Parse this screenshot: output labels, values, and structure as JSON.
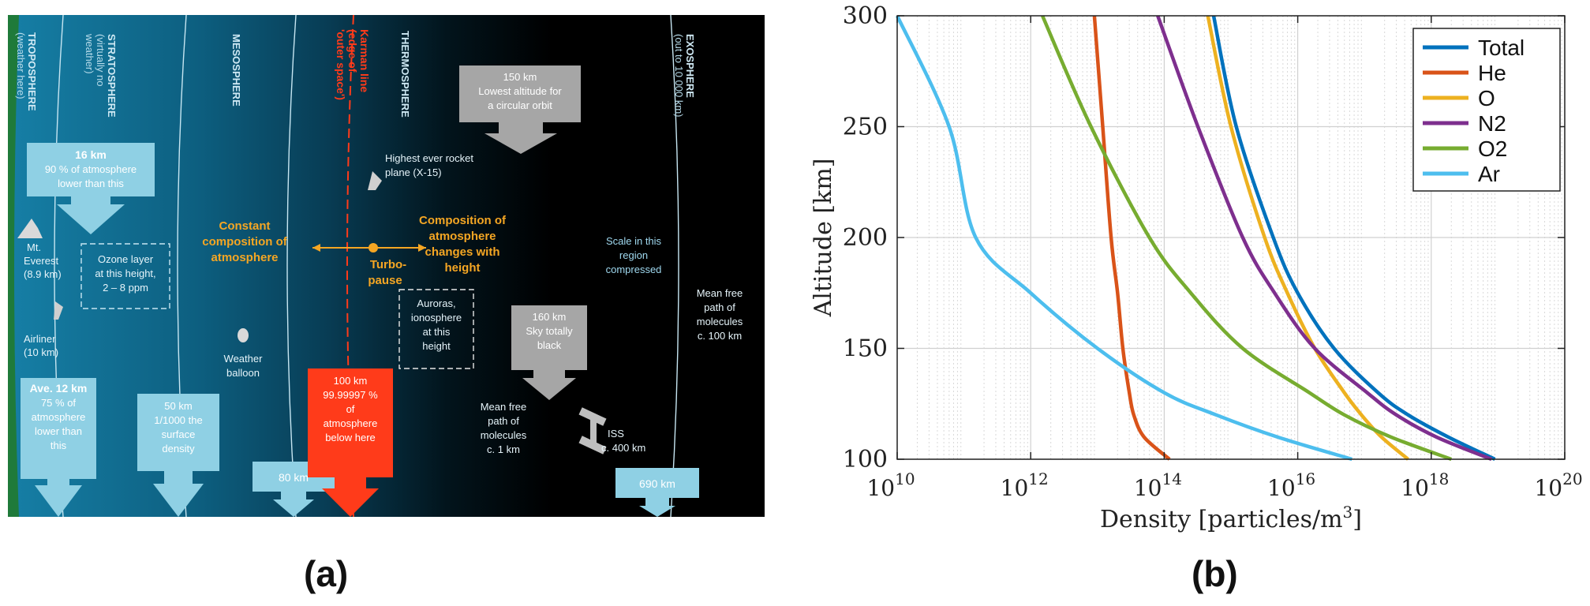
{
  "panel_a": {
    "panel_label": "(a)",
    "layers": {
      "troposphere": {
        "name": "TROPOSPHERE",
        "note": "(weather here)"
      },
      "stratosphere": {
        "name": "STRATOSPHERE",
        "note1": "(virtually no",
        "note2": "weather)"
      },
      "mesosphere": {
        "name": "MESOSPHERE"
      },
      "karman": {
        "l1": "Karman line",
        "l2": "(edge of",
        "l3": "'outer space')"
      },
      "thermosphere": {
        "name": "THERMOSPHERE"
      },
      "exosphere": {
        "name": "EXOSPHERE",
        "note": "(out to 10 000 km)"
      }
    },
    "callouts": {
      "c16km": {
        "l1": "16 km",
        "l2": "90 % of atmosphere",
        "l3": "lower than this"
      },
      "everest": {
        "l1": "Mt.",
        "l2": "Everest",
        "l3": "(8.9 km)"
      },
      "ozone": {
        "l1": "Ozone layer",
        "l2": "at this height,",
        "l3": "2 – 8 ppm"
      },
      "airliner": {
        "l1": "Airliner",
        "l2": "(10 km)"
      },
      "ave12": {
        "l1": "Ave. 12 km",
        "l2": "75 % of",
        "l3": "atmosphere",
        "l4": "lower than",
        "l5": "this"
      },
      "c50km": {
        "l1": "50 km",
        "l2": "1/1000 the",
        "l3": "surface",
        "l4": "density"
      },
      "constant": {
        "l1": "Constant",
        "l2": "composition of",
        "l3": "atmosphere"
      },
      "balloon": {
        "l1": "Weather",
        "l2": "balloon"
      },
      "c80km": {
        "l1": "80 km"
      },
      "c100km": {
        "l1": "100 km",
        "l2": "99.99997 %",
        "l3": "of",
        "l4": "atmosphere",
        "l5": "below here"
      },
      "rocket": {
        "l1": "Highest ever rocket",
        "l2": "plane (X-15)"
      },
      "turbopause": {
        "l1": "Turbo-",
        "l2": "pause"
      },
      "composition": {
        "l1": "Composition of",
        "l2": "atmosphere",
        "l3": "changes with",
        "l4": "height"
      },
      "c150km": {
        "l1": "150 km",
        "l2": "Lowest altitude for",
        "l3": "a circular orbit"
      },
      "auroras": {
        "l1": "Auroras,",
        "l2": "ionosphere",
        "l3": "at this",
        "l4": "height"
      },
      "c160km": {
        "l1": "160 km",
        "l2": "Sky totally",
        "l3": "black"
      },
      "mfp1": {
        "l1": "Mean free",
        "l2": "path of",
        "l3": "molecules",
        "l4": "c. 1 km"
      },
      "iss": {
        "l1": "ISS",
        "l2": "c. 400 km"
      },
      "scale": {
        "l1": "Scale in this",
        "l2": "region",
        "l3": "compressed"
      },
      "mfp100": {
        "l1": "Mean free",
        "l2": "path of",
        "l3": "molecules",
        "l4": "c. 100 km"
      },
      "c690km": {
        "l1": "690 km"
      }
    },
    "colors": {
      "ground": "#1f7a3a",
      "band_light": "#0f6f94",
      "band_dark": "#000000",
      "callout_box": "#8fd0e4",
      "gray_box": "#a6a6a6",
      "red_box": "#ff3b1a",
      "karman": "#ff3b1a",
      "orange_text": "#f5a623"
    }
  },
  "panel_b": {
    "panel_label": "(b)",
    "chart_data": {
      "type": "line",
      "title": "",
      "xlabel": "Density [particles/m",
      "xlabel_sup": "3",
      "xlabel_close": "]",
      "ylabel": "Altitude [km]",
      "xscale": "log",
      "xlim": [
        10000000000.0,
        1e+20
      ],
      "ylim": [
        100,
        300
      ],
      "x_ticks": [
        {
          "base": "10",
          "exp": "10"
        },
        {
          "base": "10",
          "exp": "12"
        },
        {
          "base": "10",
          "exp": "14"
        },
        {
          "base": "10",
          "exp": "16"
        },
        {
          "base": "10",
          "exp": "18"
        },
        {
          "base": "10",
          "exp": "20"
        }
      ],
      "y_ticks": [
        "100",
        "150",
        "200",
        "250",
        "300"
      ],
      "grid": true,
      "legend_position": "top-right",
      "altitudes": [
        100,
        110,
        120,
        130,
        150,
        175,
        200,
        250,
        300
      ],
      "series": [
        {
          "name": "Total",
          "color": "#0072bd",
          "values": [
            9e+18,
            1.8e+18,
            4.5e+17,
            1.6e+17,
            3.5e+16,
            1e+16,
            4300000000000000.0,
            1200000000000000.0,
            550000000000000.0
          ]
        },
        {
          "name": "He",
          "color": "#d95319",
          "values": [
            120000000000000.0,
            50000000000000.0,
            35000000000000.0,
            30000000000000.0,
            24000000000000.0,
            20000000000000.0,
            16000000000000.0,
            12000000000000.0,
            9000000000000.0
          ]
        },
        {
          "name": "O",
          "color": "#edb120",
          "values": [
            4.5e+17,
            1.8e+17,
            9e+16,
            5e+16,
            1.8e+16,
            7000000000000000.0,
            3200000000000000.0,
            1000000000000000.0,
            450000000000000.0
          ]
        },
        {
          "name": "N2",
          "color": "#7e2f8e",
          "values": [
            8e+18,
            1.2e+18,
            3e+17,
            1.1e+17,
            1.8e+16,
            4500000000000000.0,
            1500000000000000.0,
            320000000000000.0,
            80000000000000.0
          ]
        },
        {
          "name": "O2",
          "color": "#77ac30",
          "values": [
            2e+18,
            2.5e+17,
            5e+16,
            1.5e+16,
            1500000000000000.0,
            250000000000000.0,
            60000000000000.0,
            8000000000000.0,
            1500000000000.0
          ]
        },
        {
          "name": "Ar",
          "color": "#4dbeee",
          "values": [
            6.5e+16,
            5000000000000000.0,
            600000000000000.0,
            100000000000000.0,
            10000000000000.0,
            1000000000000.0,
            150000000000.0,
            60000000000.0,
            10000000000.0
          ]
        }
      ]
    }
  }
}
